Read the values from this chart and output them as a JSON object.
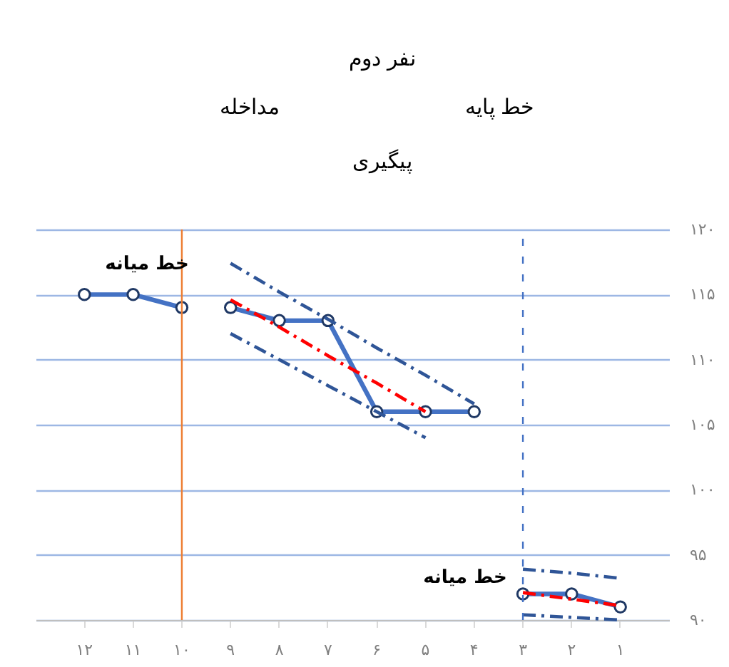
{
  "chart_data": {
    "type": "line",
    "title": "نفر دوم",
    "annotations": [
      "خط پایه",
      "مداخله",
      "پیگیری",
      "خط میانه",
      "خط میانه"
    ],
    "categories": [
      "۱۲",
      "۱۱",
      "۱۰",
      "۹",
      "۸",
      "۷",
      "۶",
      "۵",
      "۴",
      "۳",
      "۲",
      "۱"
    ],
    "series": [
      {
        "color": "#4472c4",
        "marker": "circle",
        "values": [
          115,
          115,
          114,
          null,
          null,
          null,
          null,
          null,
          null,
          null,
          null,
          null
        ]
      },
      {
        "color": "#4472c4",
        "marker": "circle",
        "values": [
          null,
          null,
          null,
          114,
          113,
          113,
          106,
          106,
          106,
          null,
          null,
          null
        ]
      },
      {
        "color": "#4472c4",
        "marker": "circle",
        "values": [
          null,
          null,
          null,
          null,
          null,
          null,
          null,
          null,
          null,
          92,
          92,
          91
        ]
      },
      {
        "color": "#ff0000",
        "marker": "none",
        "line_style": "dashed",
        "values": [
          null,
          null,
          null,
          114.6,
          112.5,
          110.3,
          108.2,
          106.0,
          null,
          null,
          null,
          null
        ]
      },
      {
        "color": "#2f5597",
        "marker": "none",
        "line_style": "dashed",
        "values": [
          null,
          null,
          null,
          117.4,
          115.2,
          113.1,
          110.9,
          108.8,
          106.6,
          null,
          null,
          null
        ]
      },
      {
        "color": "#2f5597",
        "marker": "none",
        "line_style": "dashed",
        "values": [
          null,
          null,
          null,
          112,
          110,
          108,
          106,
          104,
          null,
          null,
          null,
          null
        ]
      },
      {
        "color": "#ff0000",
        "marker": "none",
        "line_style": "dashed",
        "values": [
          null,
          null,
          null,
          null,
          null,
          null,
          null,
          null,
          null,
          92.1,
          91.6,
          91.1
        ]
      },
      {
        "color": "#2f5597",
        "marker": "none",
        "line_style": "dashed",
        "values": [
          null,
          null,
          null,
          null,
          null,
          null,
          null,
          null,
          null,
          93.9,
          93.6,
          93.2
        ]
      },
      {
        "color": "#2f5597",
        "marker": "none",
        "line_style": "dashed",
        "values": [
          null,
          null,
          null,
          null,
          null,
          null,
          null,
          null,
          null,
          90.4,
          90.2,
          90.0
        ]
      }
    ],
    "ylim": [
      90,
      120
    ],
    "yticks": [
      {
        "value": 90,
        "label": "۹۰"
      },
      {
        "value": 95,
        "label": "۹۵"
      },
      {
        "value": 100,
        "label": "۱۰۰"
      },
      {
        "value": 105,
        "label": "۱۰۵"
      },
      {
        "value": 110,
        "label": "۱۱۰"
      },
      {
        "value": 115,
        "label": "۱۱۵"
      },
      {
        "value": 120,
        "label": "۱۲۰"
      }
    ],
    "grid": "y",
    "ref_lines": [
      {
        "axis": "x",
        "value": "۱۰",
        "color": "#ed7d31",
        "line_style": "solid"
      },
      {
        "axis": "x",
        "value": "۳",
        "color": "#4472c4",
        "line_style": "dashed"
      }
    ]
  }
}
